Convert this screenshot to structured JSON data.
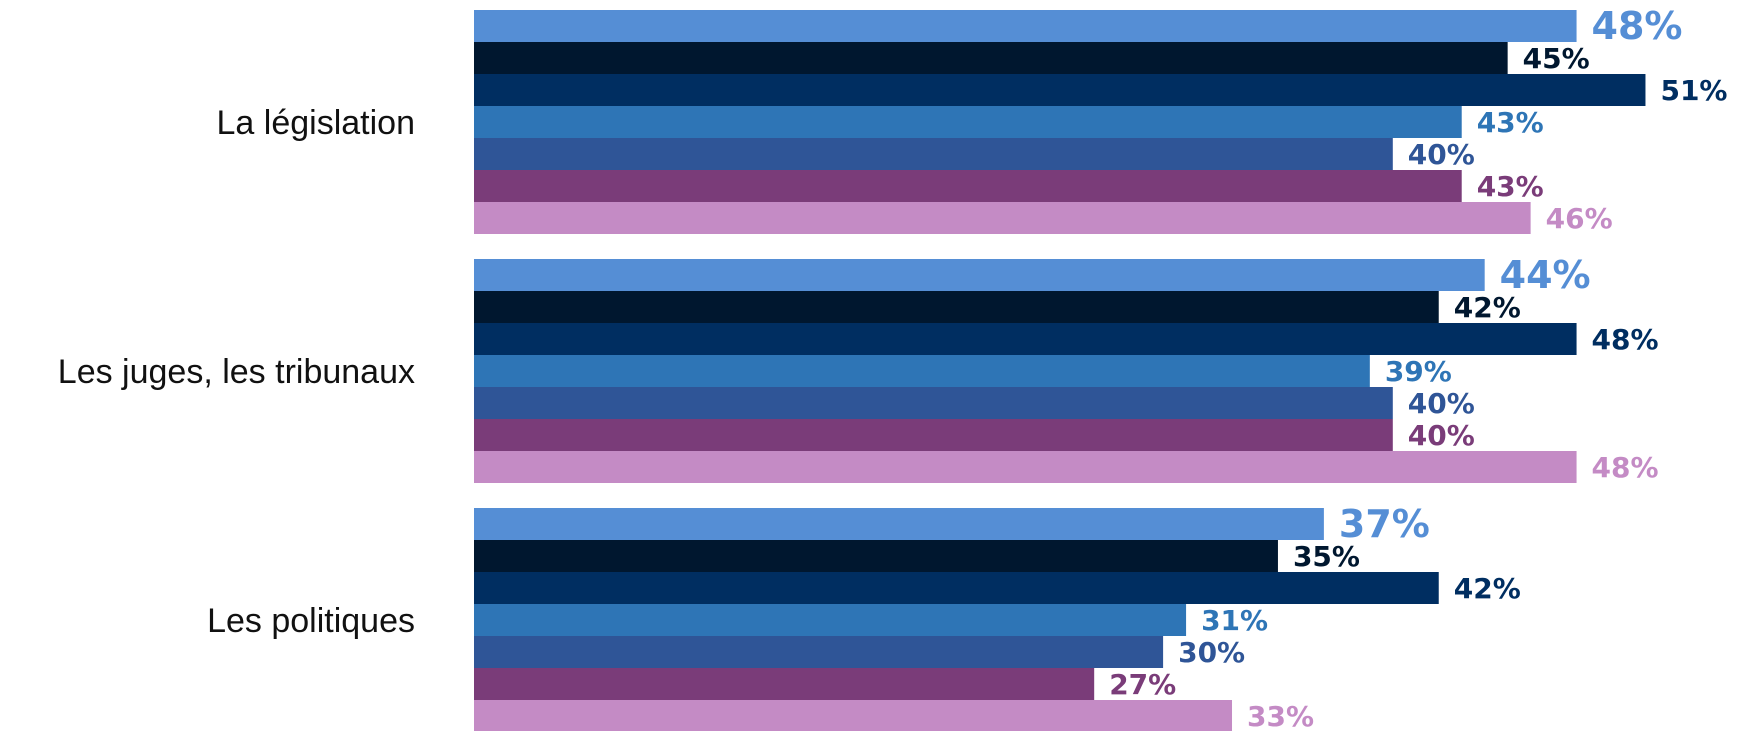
{
  "chart_data": {
    "type": "bar",
    "orientation": "horizontal",
    "categories": [
      "La législation",
      "Les juges, les tribunaux",
      "Les politiques"
    ],
    "series": [
      {
        "values": [
          48,
          44,
          37
        ],
        "color": "#558ED5",
        "label_color": "#558ED5"
      },
      {
        "values": [
          45,
          42,
          35
        ],
        "color": "#00172F",
        "label_color": "#00172F"
      },
      {
        "values": [
          51,
          48,
          42
        ],
        "color": "#002E61",
        "label_color": "#002E61"
      },
      {
        "values": [
          43,
          39,
          31
        ],
        "color": "#2E75B6",
        "label_color": "#2E75B6"
      },
      {
        "values": [
          40,
          40,
          30
        ],
        "color": "#2F5597",
        "label_color": "#2F5597"
      },
      {
        "values": [
          43,
          40,
          27
        ],
        "color": "#7A3C79",
        "label_color": "#7A3C79"
      },
      {
        "values": [
          46,
          48,
          33
        ],
        "color": "#C48BC5",
        "label_color": "#C48BC5"
      }
    ],
    "value_suffix": "%",
    "xlim": [
      0,
      100
    ],
    "grid": false,
    "legend": "none"
  }
}
